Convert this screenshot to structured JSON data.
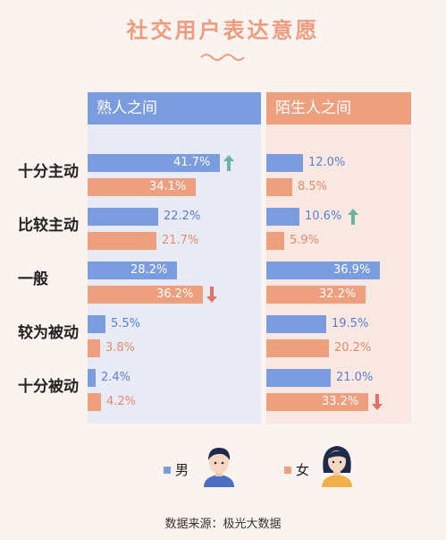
{
  "title": "社交用户表达意愿",
  "panels": {
    "left": "熟人之间",
    "right": "陌生人之间"
  },
  "legend": {
    "male": "男",
    "female": "女"
  },
  "source": "数据来源：极光大数据",
  "colors": {
    "male": "#7b9cdf",
    "female": "#ee9f7e",
    "up_arrow": "#6bb3a2",
    "down_arrow": "#e4706a"
  },
  "chart_data": {
    "type": "bar",
    "categories": [
      "十分主动",
      "比较主动",
      "一般",
      "较为被动",
      "十分被动"
    ],
    "panels": [
      {
        "name": "熟人之间",
        "series": [
          {
            "name": "男",
            "values": [
              41.7,
              22.2,
              28.2,
              5.5,
              2.4
            ]
          },
          {
            "name": "女",
            "values": [
              34.1,
              21.7,
              36.2,
              3.8,
              4.2
            ]
          }
        ],
        "labels": {
          "男": [
            "41.7%",
            "22.2%",
            "28.2%",
            "5.5%",
            "2.4%"
          ],
          "女": [
            "34.1%",
            "21.7%",
            "36.2%",
            "3.8%",
            "4.2%"
          ]
        }
      },
      {
        "name": "陌生人之间",
        "series": [
          {
            "name": "男",
            "values": [
              12.0,
              10.6,
              36.9,
              19.5,
              21.0
            ]
          },
          {
            "name": "女",
            "values": [
              8.5,
              5.9,
              32.2,
              20.2,
              33.2
            ]
          }
        ],
        "labels": {
          "男": [
            "12.0%",
            "10.6%",
            "36.9%",
            "19.5%",
            "21.0%"
          ],
          "女": [
            "8.5%",
            "5.9%",
            "32.2%",
            "20.2%",
            "33.2%"
          ]
        }
      }
    ],
    "markers": [
      {
        "panel": "熟人之间",
        "series": "男",
        "category": "十分主动",
        "direction": "up"
      },
      {
        "panel": "熟人之间",
        "series": "女",
        "category": "一般",
        "direction": "down"
      },
      {
        "panel": "陌生人之间",
        "series": "男",
        "category": "比较主动",
        "direction": "up"
      },
      {
        "panel": "陌生人之间",
        "series": "女",
        "category": "十分被动",
        "direction": "down"
      }
    ],
    "xlim": [
      0,
      45
    ]
  }
}
